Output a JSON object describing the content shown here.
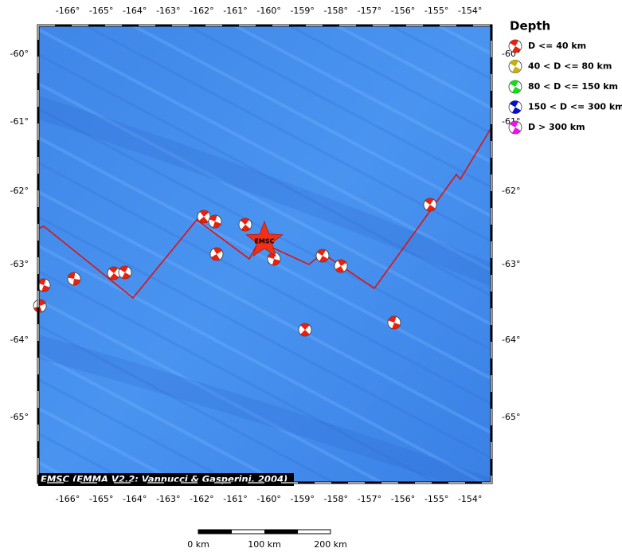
{
  "map": {
    "top_labels": [
      "-166°",
      "-165°",
      "-164°",
      "-163°",
      "-162°",
      "-161°",
      "-160°",
      "-159°",
      "-158°",
      "-157°",
      "-156°",
      "-155°",
      "-154°"
    ],
    "bottom_labels": [
      "-166°",
      "-165°",
      "-164°",
      "-163°",
      "-162°",
      "-161°",
      "-160°",
      "-159°",
      "-158°",
      "-157°",
      "-156°",
      "-155°",
      "-154°"
    ],
    "left_labels": [
      "-60°",
      "-61°",
      "-62°",
      "-63°",
      "-64°",
      "-65°"
    ],
    "right_labels": [
      "-60°",
      "-61°",
      "-62°",
      "-63°",
      "-64°",
      "-65°"
    ],
    "epicenter_label": "EMSC",
    "credit": "EMSC (EMMA V2.2; Vannucci & Gasperini, 2004)"
  },
  "legend": {
    "title": "Depth",
    "items": [
      "D <= 40 km",
      "40 < D <= 80 km",
      "80 < D <= 150 km",
      "150 < D <= 300 km",
      "D > 300 km"
    ]
  },
  "scale_bar": {
    "labels": [
      "0 km",
      "100 km",
      "200 km"
    ]
  }
}
